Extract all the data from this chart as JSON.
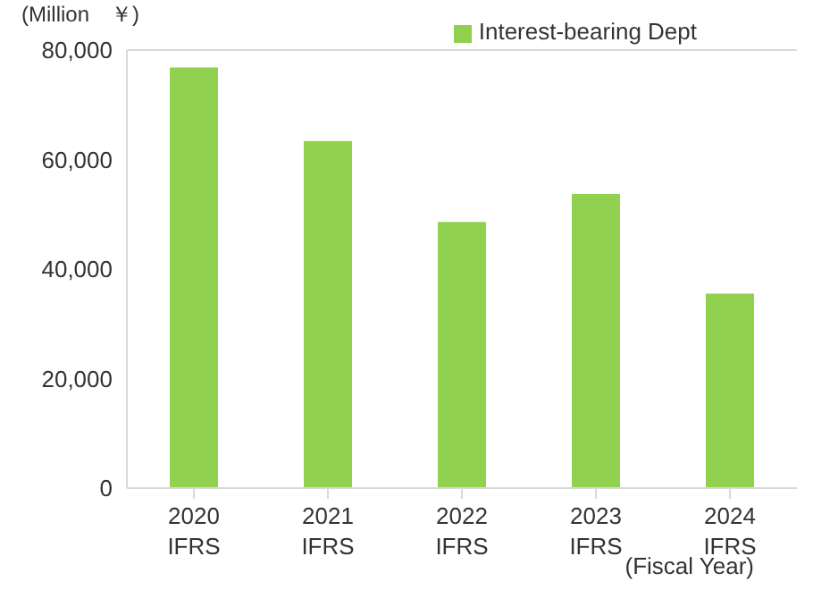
{
  "chart_data": {
    "type": "bar",
    "ylabel": "(Million　￥)",
    "xlabel": "(Fiscal Year)",
    "categories": [
      "2020\nIFRS",
      "2021\nIFRS",
      "2022\nIFRS",
      "2023\nIFRS",
      "2024\nIFRS"
    ],
    "series": [
      {
        "name": "Interest-bearing Dept",
        "color": "#92d050",
        "values": [
          76800,
          63400,
          48600,
          53700,
          35500
        ]
      }
    ],
    "ylim": [
      0,
      80000
    ],
    "yticks": [
      0,
      {
        "value": 20000,
        "label": "20,000"
      },
      {
        "value": 40000,
        "label": "40,000"
      },
      {
        "value": 60000,
        "label": "60,000"
      },
      {
        "value": 80000,
        "label": "80,000"
      }
    ],
    "legend": "top right"
  }
}
